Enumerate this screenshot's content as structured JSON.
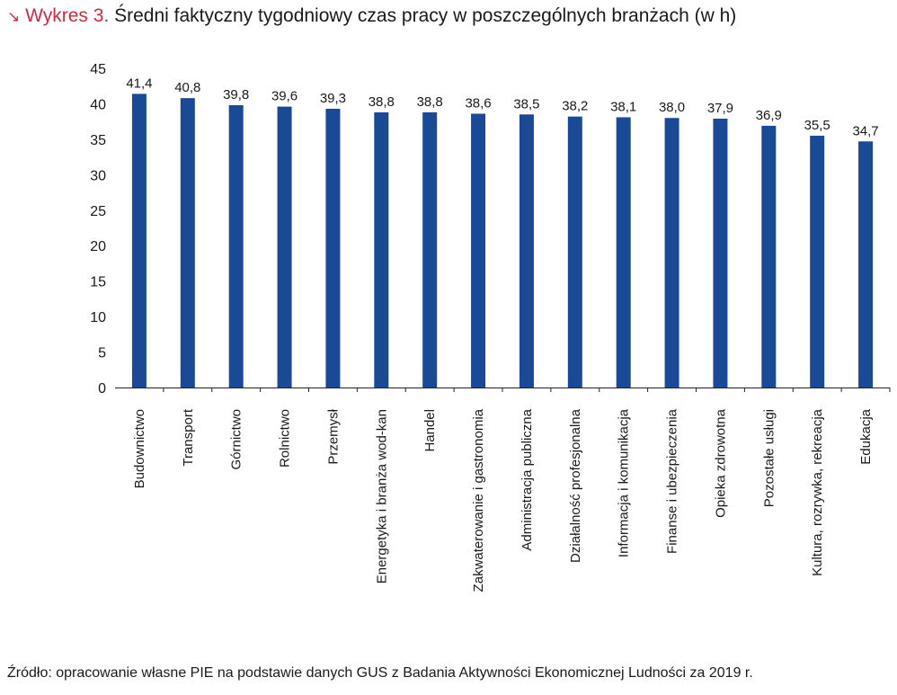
{
  "header": {
    "arrow_glyph": "↘",
    "label": "Wykres 3.",
    "title": "Średni faktyczny tygodniowy czas pracy w poszczególnych branżach (w h)"
  },
  "source": "Źródło: opracowanie własne PIE na podstawie danych GUS z Badania Aktywności Ekonomicznej Ludności za 2019 r.",
  "colors": {
    "accent": "#d3283f",
    "bar": "#1a4a96",
    "text": "#1a1a1a"
  },
  "chart_data": {
    "type": "bar",
    "title": "Średni faktyczny tygodniowy czas pracy w poszczególnych branżach (w h)",
    "xlabel": "",
    "ylabel": "",
    "ylim": [
      0,
      45
    ],
    "yticks": [
      0,
      5,
      10,
      15,
      20,
      25,
      30,
      35,
      40,
      45
    ],
    "grid": false,
    "categories": [
      "Budownictwo",
      "Transport",
      "Górnictwo",
      "Rolnictwo",
      "Przemysł",
      "Energetyka i branża wod-kan",
      "Handel",
      "Zakwaterowanie i gastronomia",
      "Administracja publiczna",
      "Działalność profesjonalna",
      "Informacja i komunikacja",
      "Finanse i ubezpieczenia",
      "Opieka zdrowotna",
      "Pozostałe usługi",
      "Kultura, rozrywka, rekreacja",
      "Edukacja"
    ],
    "values": [
      41.4,
      40.8,
      39.8,
      39.6,
      39.3,
      38.8,
      38.8,
      38.6,
      38.5,
      38.2,
      38.1,
      38.0,
      37.9,
      36.9,
      35.5,
      34.7
    ],
    "value_labels": [
      "41,4",
      "40,8",
      "39,8",
      "39,6",
      "39,3",
      "38,8",
      "38,8",
      "38,6",
      "38,5",
      "38,2",
      "38,1",
      "38,0",
      "37,9",
      "36,9",
      "35,5",
      "34,7"
    ]
  }
}
